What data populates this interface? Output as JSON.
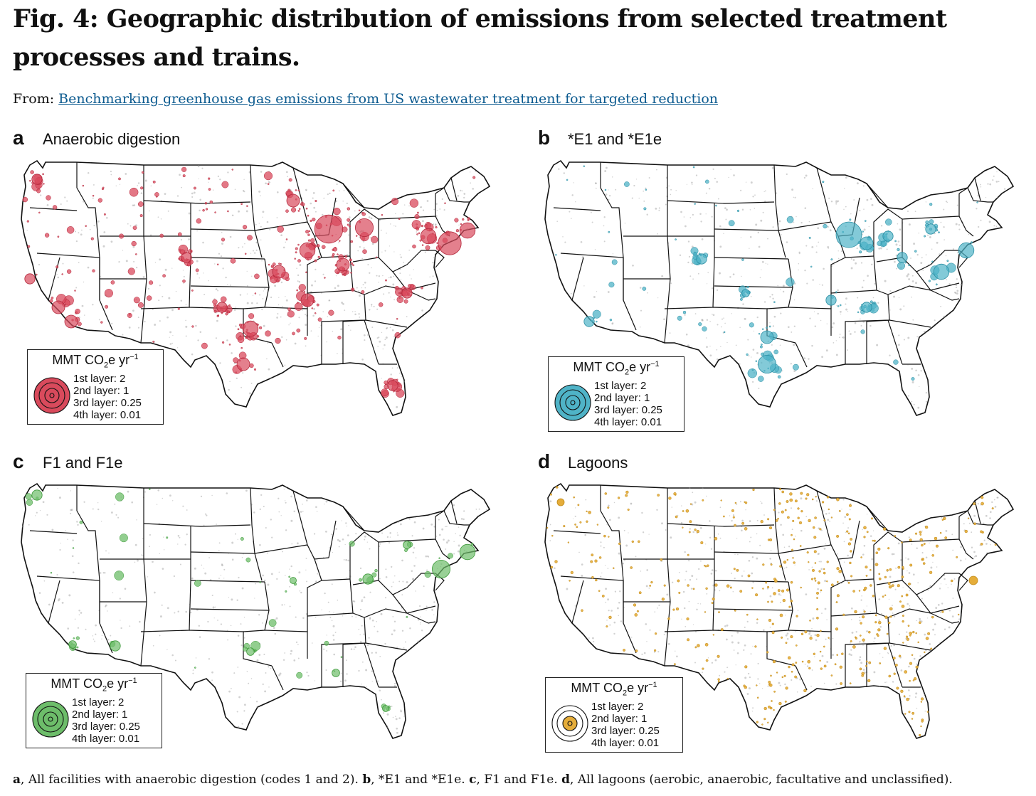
{
  "figure": {
    "title": "Fig. 4: Geographic distribution of emissions from selected treatment processes and trains.",
    "from_label": "From:",
    "from_link": "Benchmarking greenhouse gas emissions from US wastewater treatment for targeted reduction"
  },
  "panels": [
    {
      "letter": "a",
      "name": "Anaerobic digestion",
      "color": "#d94a5c",
      "edge": "#b3283c"
    },
    {
      "letter": "b",
      "name": "*E1 and *E1e",
      "color": "#4fb3c7",
      "edge": "#2a8ea3"
    },
    {
      "letter": "c",
      "name": "F1 and F1e",
      "color": "#6dbd6a",
      "edge": "#3e9a3b"
    },
    {
      "letter": "d",
      "name": "Lagoons",
      "color": "#e5ad3a",
      "edge": "#c08a18"
    }
  ],
  "legend": {
    "title_main": "MMT CO",
    "title_sub": "2",
    "title_rest": "e yr",
    "title_sup": "−1",
    "layers": [
      "1st layer: 2",
      "2nd layer: 1",
      "3rd layer: 0.25",
      "4th layer: 0.01"
    ]
  },
  "caption": {
    "a_letter": "a",
    "a_text": ", All facilities with anaerobic digestion (codes 1 and 2). ",
    "b_letter": "b",
    "b_text": ", *E1 and *E1e. ",
    "c_letter": "c",
    "c_text": ", F1 and F1e. ",
    "d_letter": "d",
    "d_text": ", All lagoons (aerobic, anaerobic, facultative and unclassified)."
  },
  "colors": {
    "state_border": "#111111",
    "background_dot": "#9a9a9a"
  }
}
